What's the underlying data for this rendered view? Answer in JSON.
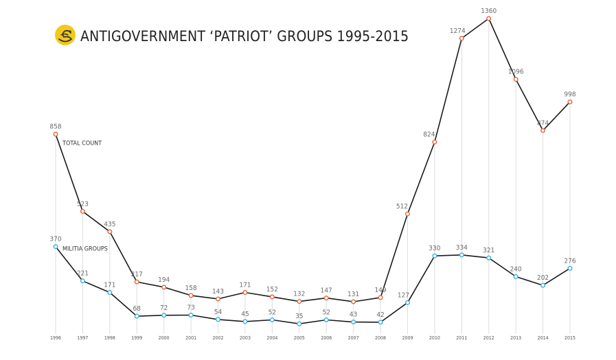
{
  "header": {
    "title": "ANTIGOVERNMENT ‘PATRIOT’ GROUPS 1995-2015",
    "logo": "coiled-snake-icon"
  },
  "colors": {
    "line": "#1a1a1a",
    "total_marker": "#e4643a",
    "militia_marker": "#3bb0d9",
    "grid": "#dddddd",
    "logo_bg": "#f2c81c"
  },
  "chart_data": {
    "type": "line",
    "title": "ANTIGOVERNMENT ‘PATRIOT’ GROUPS 1995-2015",
    "x": [
      "1996",
      "1997",
      "1998",
      "1999",
      "2000",
      "2001",
      "2002",
      "2003",
      "2004",
      "2005",
      "2006",
      "2007",
      "2008",
      "2009",
      "2010",
      "2011",
      "2012",
      "2013",
      "2014",
      "2015"
    ],
    "series": [
      {
        "name": "TOTAL COUNT",
        "values": [
          858,
          523,
          435,
          217,
          194,
          158,
          143,
          171,
          152,
          132,
          147,
          131,
          149,
          512,
          824,
          1274,
          1360,
          1096,
          874,
          998
        ]
      },
      {
        "name": "MILITIA GROUPS",
        "values": [
          370,
          221,
          171,
          68,
          72,
          73,
          54,
          45,
          52,
          35,
          52,
          43,
          42,
          127,
          330,
          334,
          321,
          240,
          202,
          276
        ]
      }
    ],
    "xlabel": "",
    "ylabel": "",
    "ylim": [
      0,
      1360
    ],
    "grid": "vertical lines at each year",
    "legend": "inline labels next to first points"
  }
}
